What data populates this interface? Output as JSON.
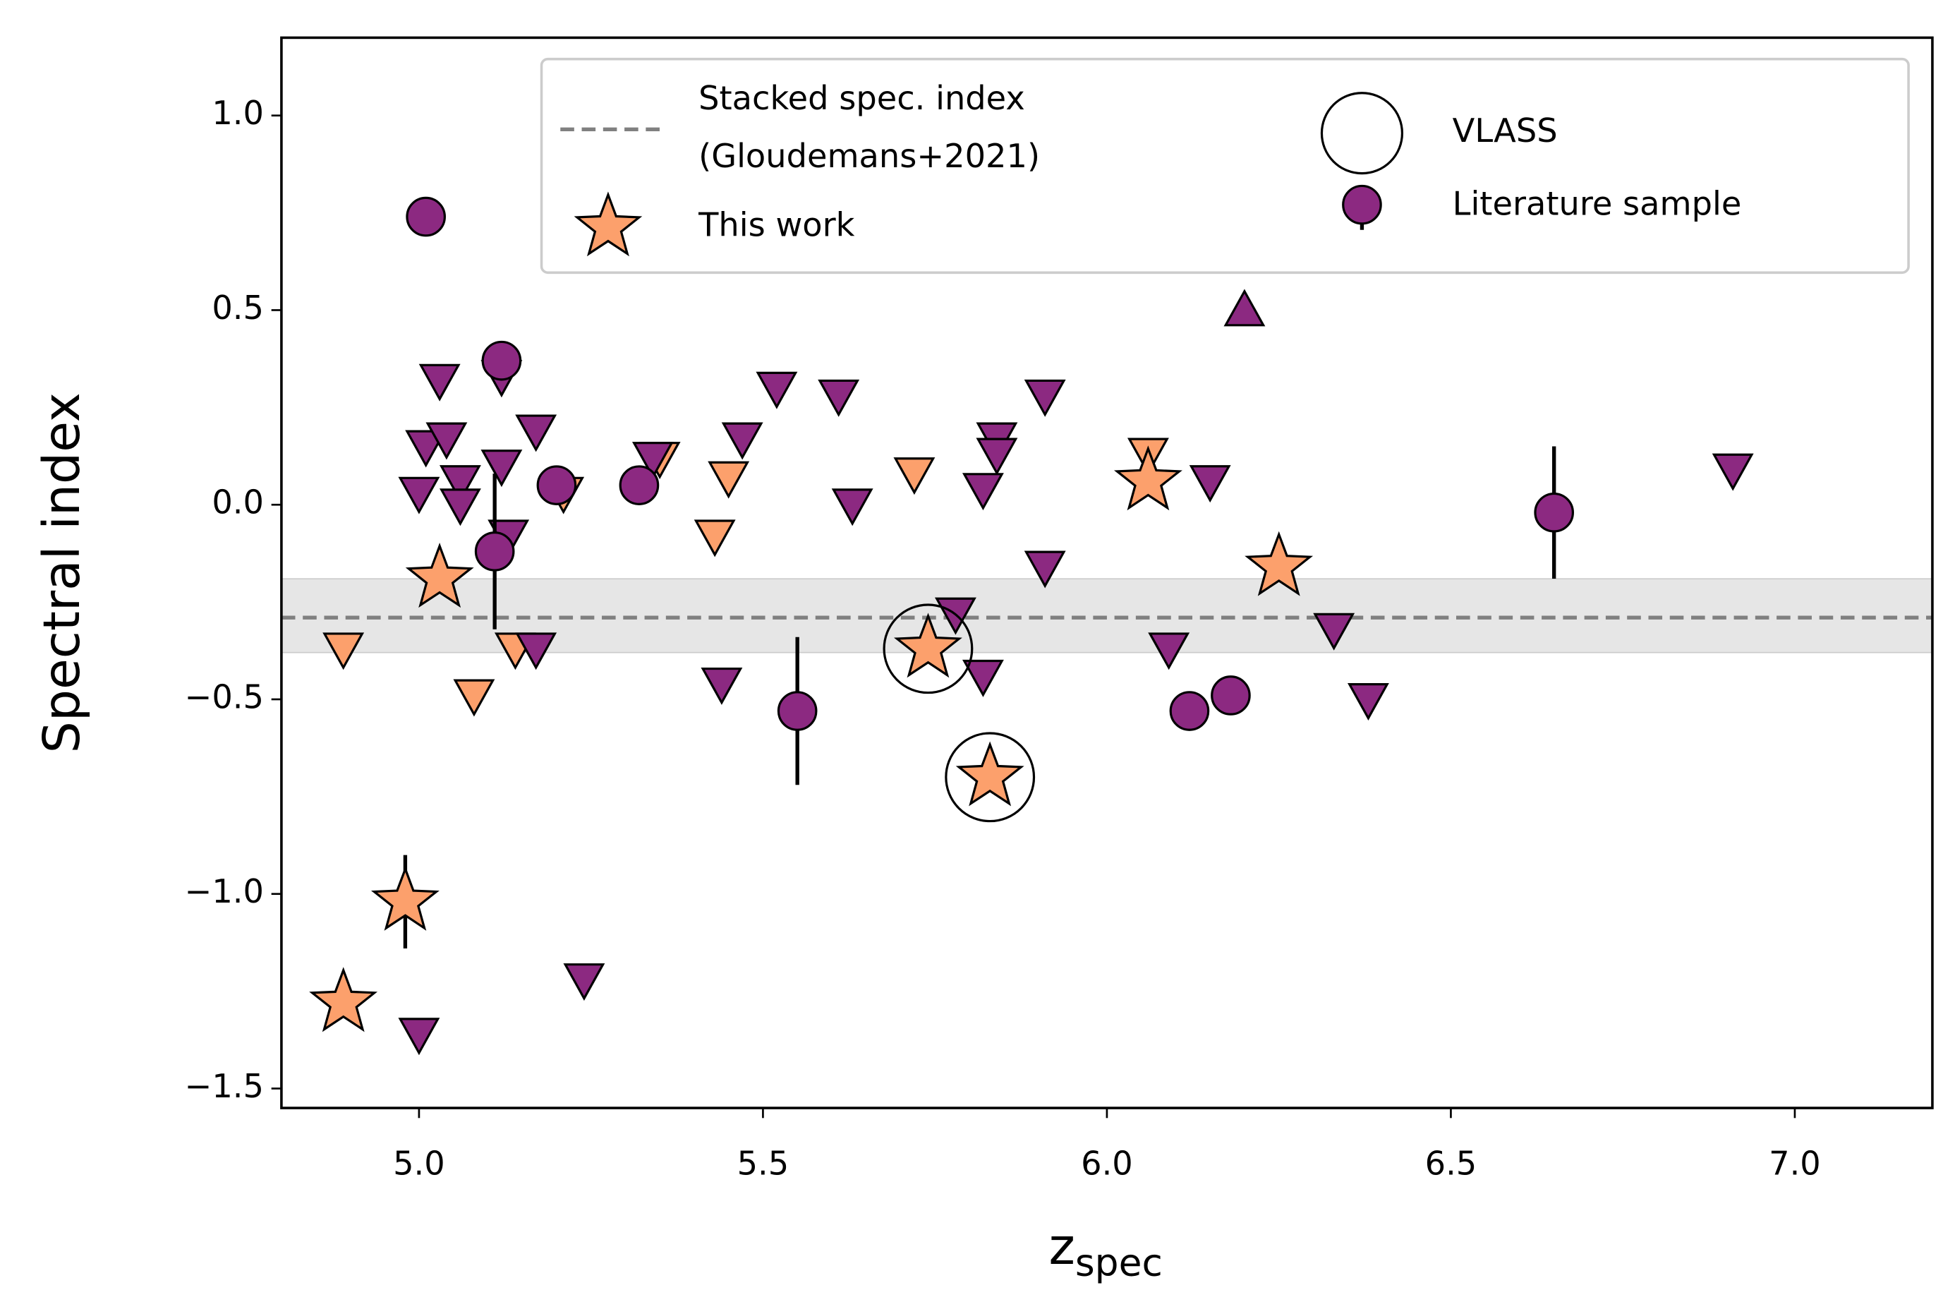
{
  "chart_data": {
    "type": "scatter",
    "y_label": "Spectral index",
    "x_label": "z",
    "x_label_sub": "spec",
    "xlim": [
      4.8,
      7.2
    ],
    "xticks": [
      {
        "value": 5.0,
        "label": "5.0"
      },
      {
        "value": 5.5,
        "label": "5.5"
      },
      {
        "value": 6.0,
        "label": "6.0"
      },
      {
        "value": 6.5,
        "label": "6.5"
      },
      {
        "value": 7.0,
        "label": "7.0"
      }
    ],
    "ylim": [
      -1.55,
      1.2
    ],
    "yticks": [
      {
        "value": -1.5,
        "label": "−1.5"
      },
      {
        "value": -1.0,
        "label": "−1.0"
      },
      {
        "value": -0.5,
        "label": "−0.5"
      },
      {
        "value": 0.0,
        "label": "0.0"
      },
      {
        "value": 0.5,
        "label": "0.5"
      },
      {
        "value": 1.0,
        "label": "1.0"
      }
    ],
    "reference": {
      "name_lines": [
        "Stacked spec. index",
        "(Gloudemans+2021)"
      ],
      "value": -0.29,
      "band": [
        -0.38,
        -0.19
      ],
      "color": "#808080"
    },
    "series": [
      {
        "name": "This work",
        "marker": "star",
        "color": "#fca06c",
        "x": [
          4.89,
          4.98,
          5.03,
          5.74,
          5.83,
          6.06,
          6.25
        ],
        "values": [
          -1.28,
          -1.02,
          -0.19,
          -0.37,
          -0.7,
          0.06,
          -0.16
        ],
        "errors": [
          null,
          0.12,
          null,
          null,
          null,
          null,
          null
        ]
      },
      {
        "name": "Literature sample",
        "marker": "circle",
        "color": "#8c2981",
        "x": [
          5.01,
          5.12,
          5.11,
          5.2,
          5.32,
          5.55,
          6.12,
          6.18,
          6.65
        ],
        "values": [
          0.74,
          0.37,
          -0.12,
          0.05,
          0.05,
          -0.53,
          -0.53,
          -0.49,
          -0.02
        ],
        "errors": [
          null,
          null,
          0.2,
          null,
          null,
          0.19,
          null,
          null,
          0.17
        ]
      }
    ],
    "limits": [
      {
        "marker": "down",
        "color": "#fca06c",
        "x": [
          4.89,
          5.08,
          5.14,
          5.21,
          5.35,
          5.43,
          5.45,
          5.72,
          6.06
        ],
        "values": [
          -0.37,
          -0.49,
          -0.37,
          0.03,
          0.12,
          -0.08,
          0.07,
          0.08,
          0.13
        ]
      },
      {
        "marker": "down",
        "color": "#8c2981",
        "x": [
          5.03,
          5.01,
          5.0,
          5.04,
          5.06,
          5.06,
          5.12,
          5.12,
          5.13,
          5.17,
          5.17,
          5.24,
          5.0,
          5.34,
          5.44,
          5.47,
          5.52,
          5.61,
          5.63,
          5.78,
          5.82,
          5.82,
          5.84,
          5.84,
          5.91,
          5.91,
          6.09,
          6.15,
          6.33,
          6.38,
          6.91
        ],
        "values": [
          0.32,
          0.15,
          0.03,
          0.17,
          0.06,
          0.0,
          0.33,
          0.1,
          -0.08,
          0.19,
          -0.37,
          -1.22,
          -1.36,
          0.12,
          -0.46,
          0.17,
          0.3,
          0.28,
          0.0,
          -0.28,
          0.04,
          -0.44,
          0.17,
          0.13,
          0.28,
          -0.16,
          -0.37,
          0.06,
          -0.32,
          -0.5,
          0.09
        ]
      },
      {
        "marker": "up",
        "color": "#8c2981",
        "x": [
          6.2
        ],
        "values": [
          0.5
        ]
      }
    ],
    "vlass": {
      "name": "VLASS",
      "x": [
        5.74,
        5.83
      ],
      "values": [
        -0.37,
        -0.7
      ]
    }
  }
}
